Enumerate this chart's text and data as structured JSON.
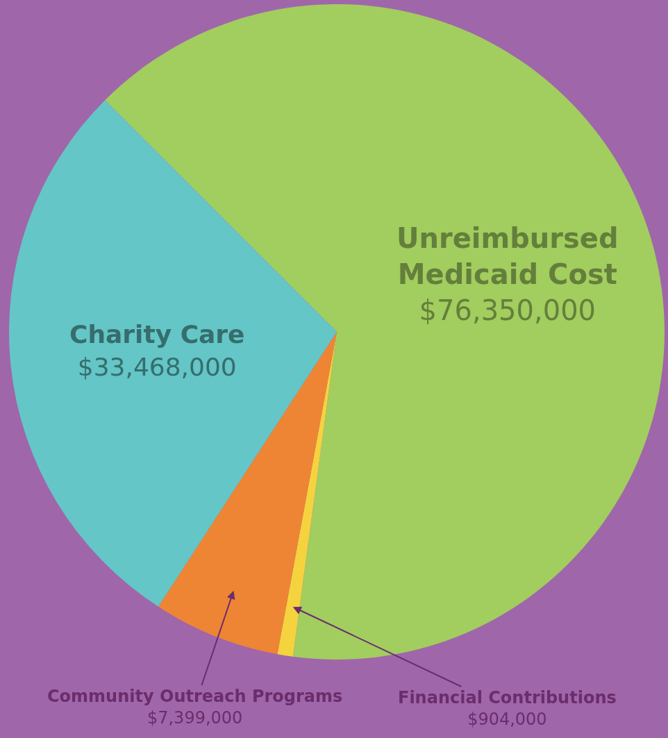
{
  "chart_data": {
    "type": "pie",
    "categories": [
      "Unreimbursed Medicaid Cost",
      "Financial Contributions",
      "Community Outreach Programs",
      "Charity Care"
    ],
    "values": [
      76350000,
      904000,
      7399000,
      33468000
    ],
    "colors": [
      "#a2cd5f",
      "#f5d33e",
      "#ee8534",
      "#64c6c6"
    ],
    "value_labels": [
      "$76,350,000",
      "$904,000",
      "$7,399,000",
      "$33,468,000"
    ],
    "legend": false
  }
}
